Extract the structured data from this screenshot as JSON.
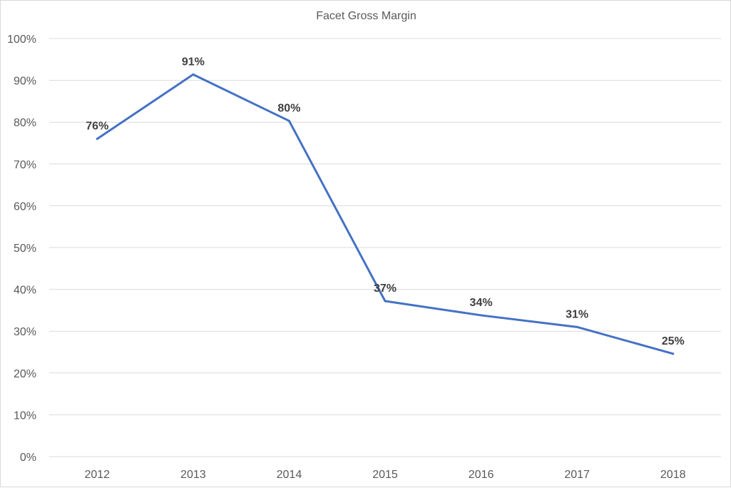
{
  "chart_data": {
    "type": "line",
    "title": "Facet Gross Margin",
    "xlabel": "",
    "ylabel": "",
    "categories": [
      "2012",
      "2013",
      "2014",
      "2015",
      "2016",
      "2017",
      "2018"
    ],
    "series": [
      {
        "values": [
          0.76,
          0.914,
          0.803,
          0.372,
          0.338,
          0.31,
          0.246
        ],
        "data_labels": [
          "76%",
          "91%",
          "80%",
          "37%",
          "34%",
          "31%",
          "25%"
        ],
        "color": "#4472c4"
      }
    ],
    "ylim": [
      0,
      1
    ],
    "yticks": [
      0,
      0.1,
      0.2,
      0.3,
      0.4,
      0.5,
      0.6,
      0.7,
      0.8,
      0.9,
      1.0
    ],
    "ytick_labels": [
      "0%",
      "10%",
      "20%",
      "30%",
      "40%",
      "50%",
      "60%",
      "70%",
      "80%",
      "90%",
      "100%"
    ],
    "grid": true,
    "gridline_color": "#d9d9d9",
    "legend": "none"
  }
}
